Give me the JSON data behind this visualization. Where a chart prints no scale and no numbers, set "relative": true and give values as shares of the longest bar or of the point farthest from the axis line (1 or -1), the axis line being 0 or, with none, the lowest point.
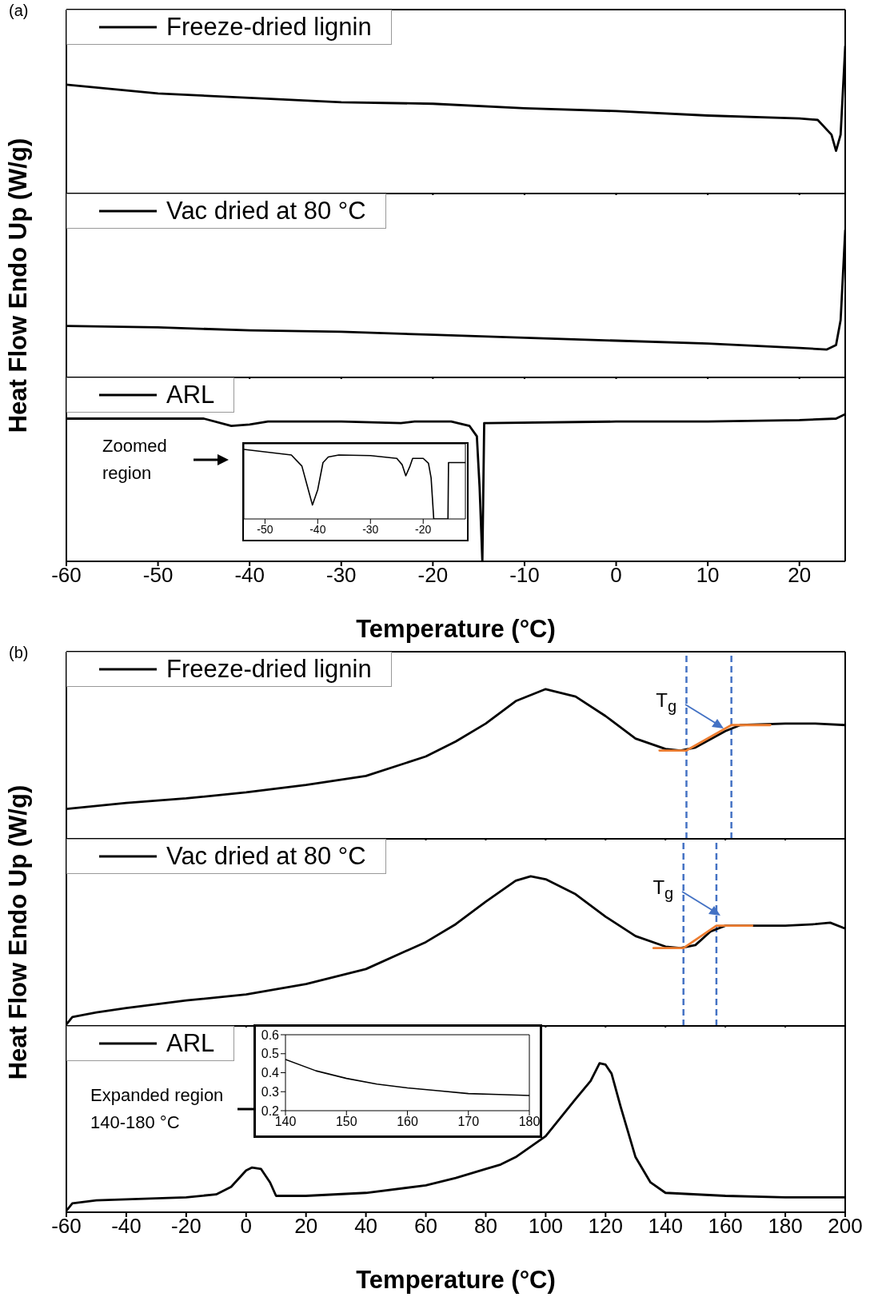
{
  "chart_data": [
    {
      "type": "line",
      "title": "(a)",
      "relative": true,
      "xlim": [
        -60,
        25
      ],
      "xticks": [
        -60,
        -50,
        -40,
        -30,
        -20,
        -10,
        0,
        10,
        20
      ],
      "tick_labels": false,
      "legend": "top left",
      "x": [
        -60,
        -50,
        -40,
        -30,
        -20,
        -10,
        0,
        10,
        20,
        22,
        23.5,
        24,
        24.5,
        25
      ],
      "series": [
        {
          "name": "Freeze-dried lignin",
          "color": "#000000",
          "values": [
            0.74,
            0.68,
            0.65,
            0.62,
            0.61,
            0.58,
            0.56,
            0.53,
            0.51,
            0.5,
            0.4,
            0.29,
            0.4,
            1
          ]
        }
      ]
    },
    {
      "type": "line",
      "ylabel": "Heat Flow Endo Up (W/g)",
      "relative": true,
      "xlim": [
        -60,
        25
      ],
      "xticks": [
        -60,
        -50,
        -40,
        -30,
        -20,
        -10,
        0,
        10,
        20
      ],
      "tick_labels": false,
      "legend": "top left",
      "x": [
        -60,
        -50,
        -40,
        -30,
        -20,
        -10,
        0,
        10,
        20,
        23,
        24,
        24.5,
        25
      ],
      "series": [
        {
          "name": "Vac dried at 80 °C",
          "color": "#000000",
          "values": [
            0.35,
            0.34,
            0.32,
            0.31,
            0.29,
            0.27,
            0.25,
            0.23,
            0.2,
            0.19,
            0.22,
            0.39,
            1
          ]
        }
      ]
    },
    {
      "type": "line",
      "xlabel": "Temperature (°C)",
      "relative": true,
      "xlim": [
        -60,
        25
      ],
      "xticks": [
        -60,
        -50,
        -40,
        -30,
        -20,
        -10,
        0,
        10,
        20
      ],
      "tick_labels": "x",
      "legend": "top left",
      "annotations": [
        "Zoomed region"
      ],
      "x": [
        -60,
        -45,
        -42,
        -40,
        -38,
        -30,
        -23.5,
        -22,
        -18,
        -16,
        -15.2,
        -14.9,
        -14.6,
        -14.4,
        -14,
        0,
        10,
        20,
        24,
        25
      ],
      "series": [
        {
          "name": "ARL",
          "color": "#000000",
          "values": [
            0.97,
            0.97,
            0.92,
            0.93,
            0.95,
            0.95,
            0.94,
            0.95,
            0.95,
            0.92,
            0.85,
            0.5,
            0,
            0.94,
            0.94,
            0.95,
            0.95,
            0.96,
            0.97,
            1
          ]
        }
      ]
    },
    {
      "type": "line",
      "relative": true,
      "xlim": [
        -54,
        -12
      ],
      "xticks": [
        -50,
        -40,
        -30,
        -20
      ],
      "tick_labels": "x",
      "x": [
        -54,
        -45,
        -43,
        -42,
        -41,
        -40,
        -39,
        -38,
        -36,
        -30,
        -25,
        -24,
        -23.3,
        -22.5,
        -22,
        -20,
        -19,
        -18.5,
        -18,
        -15.3,
        -15.2,
        -12
      ],
      "series": [
        {
          "color": "#000000",
          "values": [
            1,
            0.92,
            0.76,
            0.48,
            0.2,
            0.42,
            0.81,
            0.89,
            0.92,
            0.91,
            0.87,
            0.78,
            0.62,
            0.76,
            0.87,
            0.87,
            0.8,
            0.59,
            0,
            0,
            0.81,
            0.81
          ]
        }
      ]
    },
    {
      "type": "line",
      "title": "(b)",
      "relative": true,
      "xlim": [
        -60,
        200
      ],
      "xticks": [
        -60,
        -40,
        -20,
        0,
        20,
        40,
        60,
        80,
        100,
        120,
        140,
        160,
        180,
        200
      ],
      "tick_labels": false,
      "legend": "top left",
      "annotations": [
        "T$_{g}$"
      ],
      "ref_lines": [
        {
          "axis": "x",
          "value": 147,
          "color": "#4472c4",
          "line_style": "dashed"
        },
        {
          "axis": "x",
          "value": 162,
          "color": "#4472c4",
          "line_style": "dashed"
        }
      ],
      "x": [
        -60,
        -40,
        -20,
        0,
        20,
        40,
        60,
        70,
        80,
        90,
        100,
        110,
        120,
        130,
        140,
        145,
        150,
        160,
        165,
        180,
        190,
        200
      ],
      "series": [
        {
          "name": "Freeze-dried lignin",
          "color": "#000000",
          "values": [
            0.2,
            0.24,
            0.27,
            0.31,
            0.36,
            0.42,
            0.55,
            0.65,
            0.77,
            0.92,
            1,
            0.95,
            0.82,
            0.67,
            0.6,
            0.59,
            0.61,
            0.72,
            0.76,
            0.77,
            0.77,
            0.76
          ]
        },
        {
          "type": "line",
          "color": "#ed7d31",
          "x": [
            138,
            147,
            162,
            175
          ],
          "values": [
            0.59,
            0.59,
            0.76,
            0.76
          ]
        }
      ]
    },
    {
      "type": "line",
      "ylabel": "Heat Flow Endo Up (W/g)",
      "relative": true,
      "xlim": [
        -60,
        200
      ],
      "xticks": [
        -60,
        -40,
        -20,
        0,
        20,
        40,
        60,
        80,
        100,
        120,
        140,
        160,
        180,
        200
      ],
      "tick_labels": false,
      "legend": "top left",
      "annotations": [
        "T$_{g}$"
      ],
      "ref_lines": [
        {
          "axis": "x",
          "value": 146,
          "color": "#4472c4",
          "line_style": "dashed"
        },
        {
          "axis": "x",
          "value": 157,
          "color": "#4472c4",
          "line_style": "dashed"
        }
      ],
      "x": [
        -60,
        -58,
        -50,
        -40,
        -20,
        0,
        20,
        40,
        60,
        70,
        80,
        90,
        95,
        100,
        110,
        120,
        130,
        140,
        145,
        150,
        155,
        160,
        170,
        180,
        190,
        195,
        200
      ],
      "series": [
        {
          "name": "Vac dried at 80 °C",
          "color": "#000000",
          "values": [
            0.01,
            0.06,
            0.09,
            0.12,
            0.17,
            0.21,
            0.28,
            0.38,
            0.56,
            0.68,
            0.83,
            0.97,
            1,
            0.98,
            0.88,
            0.73,
            0.6,
            0.53,
            0.52,
            0.54,
            0.63,
            0.67,
            0.67,
            0.67,
            0.68,
            0.69,
            0.65
          ]
        },
        {
          "type": "line",
          "color": "#ed7d31",
          "x": [
            136,
            146,
            157,
            169
          ],
          "values": [
            0.52,
            0.52,
            0.67,
            0.67
          ]
        }
      ]
    },
    {
      "type": "line",
      "xlabel": "Temperature (°C)",
      "relative": true,
      "xlim": [
        -60,
        200
      ],
      "xticks": [
        -60,
        -40,
        -20,
        0,
        20,
        40,
        60,
        80,
        100,
        120,
        140,
        160,
        180,
        200
      ],
      "tick_labels": "x",
      "legend": "top left",
      "annotations": [
        "Expanded region 140-180 °C"
      ],
      "x": [
        -60,
        -58,
        -50,
        -20,
        -10,
        -5,
        0,
        2,
        5,
        8,
        10,
        20,
        40,
        60,
        70,
        80,
        85,
        90,
        100,
        110,
        115,
        118,
        120,
        122,
        125,
        130,
        135,
        140,
        160,
        180,
        200
      ],
      "series": [
        {
          "name": "ARL",
          "color": "#000000",
          "values": [
            0.01,
            0.06,
            0.08,
            0.1,
            0.12,
            0.17,
            0.28,
            0.3,
            0.29,
            0.2,
            0.11,
            0.11,
            0.13,
            0.18,
            0.23,
            0.29,
            0.32,
            0.37,
            0.51,
            0.76,
            0.88,
            1,
            0.99,
            0.93,
            0.71,
            0.37,
            0.2,
            0.13,
            0.11,
            0.1,
            0.1
          ]
        }
      ]
    },
    {
      "type": "line",
      "xlim": [
        140,
        180
      ],
      "xticks": [
        140,
        150,
        160,
        170,
        180
      ],
      "ylim": [
        0.2,
        0.6
      ],
      "yticks": [
        0.2,
        0.3,
        0.4,
        0.5,
        0.6
      ],
      "x": [
        140,
        145,
        150,
        155,
        160,
        165,
        170,
        175,
        180
      ],
      "series": [
        {
          "color": "#000000",
          "values": [
            0.47,
            0.41,
            0.37,
            0.34,
            0.32,
            0.305,
            0.29,
            0.285,
            0.28
          ]
        }
      ]
    }
  ]
}
